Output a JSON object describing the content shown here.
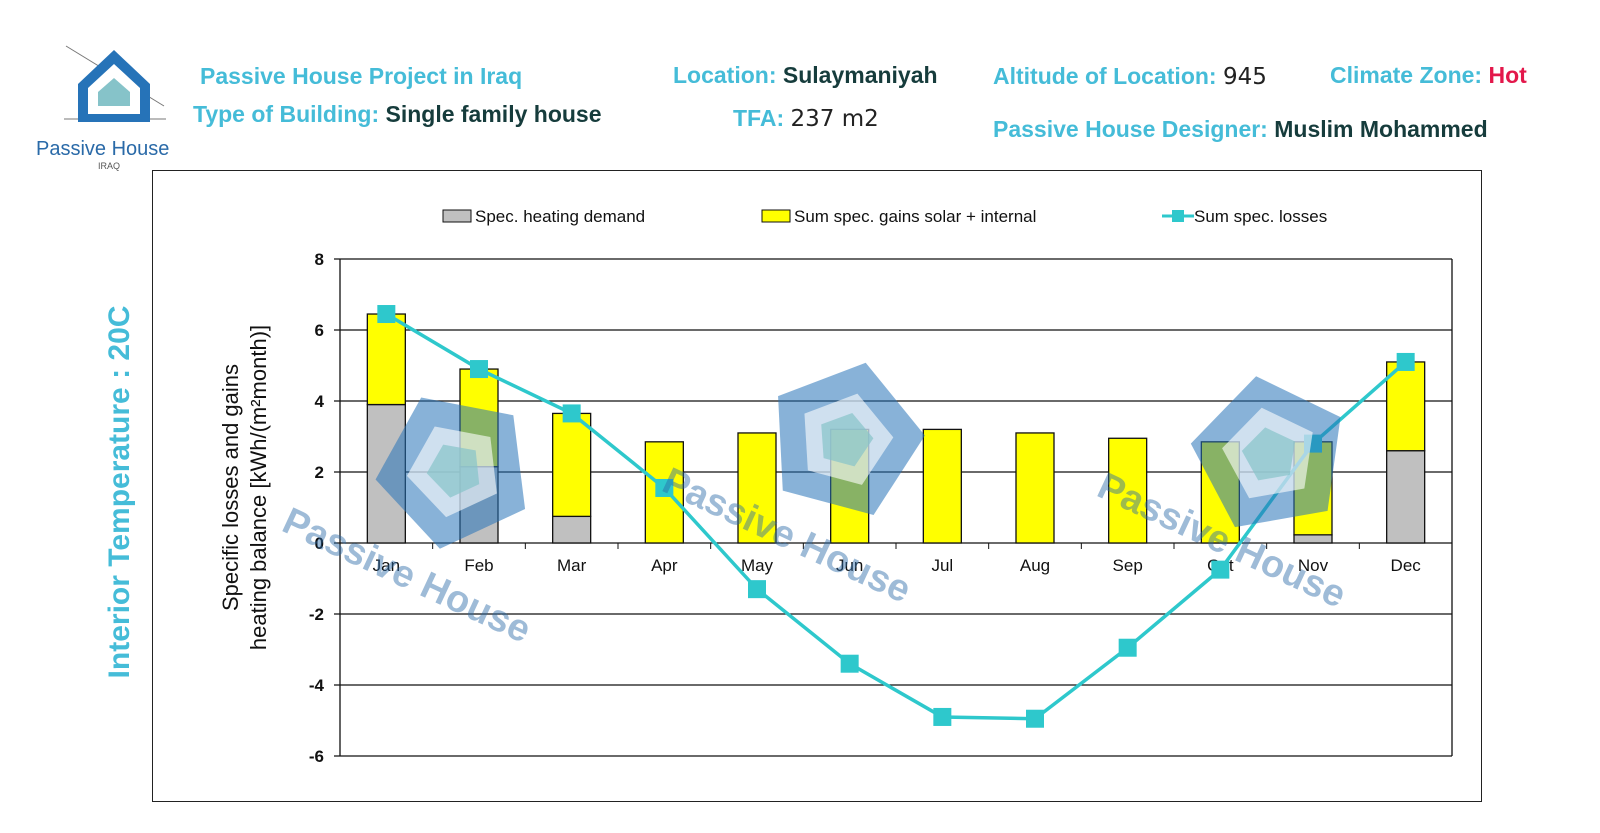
{
  "header": {
    "logo_text": "Passive House",
    "logo_sub": "IRAQ",
    "project_title": "Passive House Project in Iraq",
    "building_type_label": "Type of Building:",
    "building_type_value": "Single family house",
    "location_label": "Location:",
    "location_value": "Sulaymaniyah",
    "tfa_label": "TFA:",
    "tfa_value": "237 m2",
    "altitude_label": "Altitude of Location:",
    "altitude_value": "945",
    "climate_label": "Climate Zone:",
    "climate_value": "Hot",
    "designer_label": "Passive House Designer:",
    "designer_value": "Muslim Mohammed"
  },
  "side_label": "Interior Temperature : 20C",
  "colors": {
    "heating": "#c0c0c0",
    "gains": "#ffff00",
    "losses": "#2ec8cc",
    "accent": "#45bcd8"
  },
  "chart_data": {
    "type": "bar",
    "categories": [
      "Jan",
      "Feb",
      "Mar",
      "Apr",
      "May",
      "Jun",
      "Jul",
      "Aug",
      "Sep",
      "Oct",
      "Nov",
      "Dec"
    ],
    "series": [
      {
        "name": "Spec. heating demand",
        "kind": "stacked-bar",
        "values": [
          3.9,
          2.15,
          0.75,
          0,
          0,
          0,
          0,
          0,
          0,
          0,
          0.23,
          2.6
        ]
      },
      {
        "name": "Sum spec. gains solar + internal",
        "kind": "stacked-bar",
        "values": [
          2.55,
          2.75,
          2.9,
          2.85,
          3.1,
          3.2,
          3.2,
          3.1,
          2.95,
          2.85,
          2.62,
          2.5
        ]
      },
      {
        "name": "Sum spec. losses",
        "kind": "line",
        "values": [
          6.45,
          4.9,
          3.65,
          1.55,
          -1.3,
          -3.4,
          -4.9,
          -4.95,
          -2.95,
          -0.75,
          2.8,
          5.1
        ]
      }
    ],
    "ylabel_line1": "Specific losses and gains",
    "ylabel_line2": "heating balance [kWh/(m²month)]",
    "ylim": [
      -6,
      8
    ],
    "yticks": [
      "8",
      "6",
      "4",
      "2",
      "0",
      "-2",
      "-4",
      "-6"
    ],
    "legend_position": "top",
    "grid": true
  }
}
